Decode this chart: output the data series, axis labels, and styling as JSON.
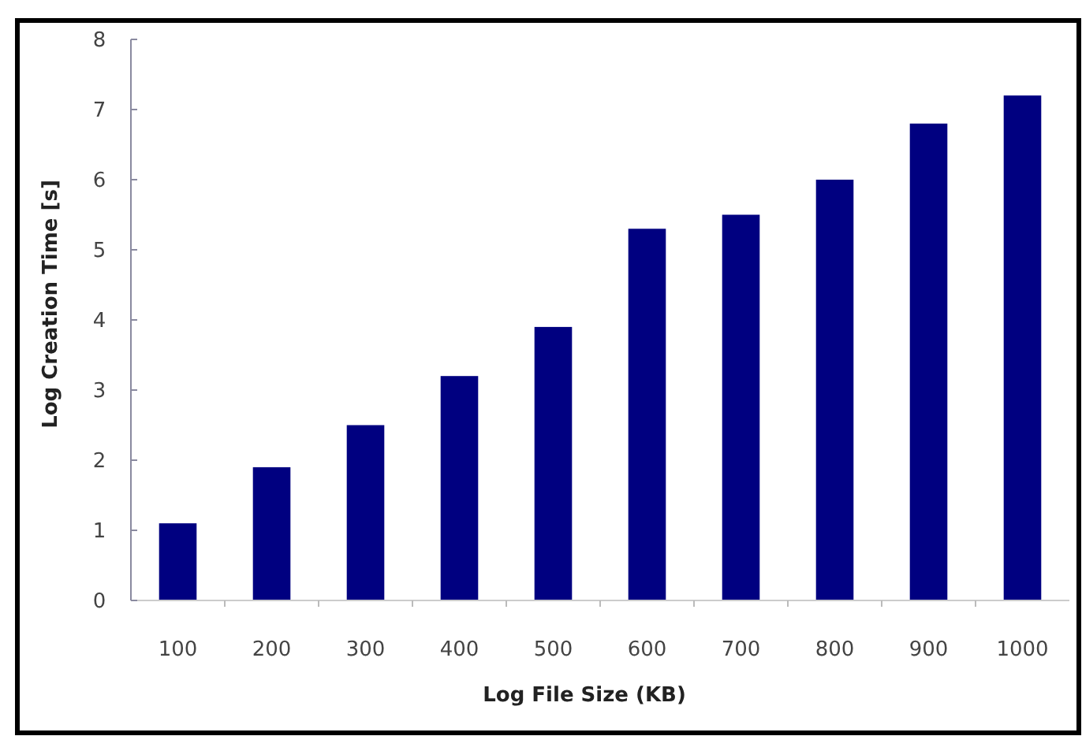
{
  "chart_data": {
    "type": "bar",
    "xlabel": "Log File Size (KB)",
    "ylabel": "Log Creation Time [s]",
    "categories": [
      "100",
      "200",
      "300",
      "400",
      "500",
      "600",
      "700",
      "800",
      "900",
      "1000"
    ],
    "values": [
      1.1,
      1.9,
      2.5,
      3.2,
      3.9,
      5.3,
      5.5,
      6.0,
      6.8,
      7.2
    ],
    "color": "#000080",
    "ylim": [
      0,
      8
    ],
    "yticks": [
      0,
      1,
      2,
      3,
      4,
      5,
      6,
      7,
      8
    ],
    "grid": false
  }
}
